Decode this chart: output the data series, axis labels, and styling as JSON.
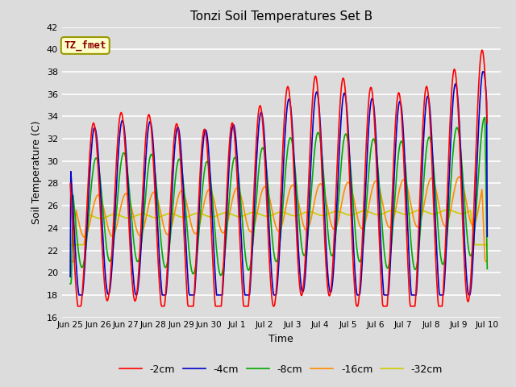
{
  "title": "Tonzi Soil Temperatures Set B",
  "xlabel": "Time",
  "ylabel": "Soil Temperature (C)",
  "ylim": [
    16,
    42
  ],
  "annotation_text": "TZ_fmet",
  "annotation_color": "#8B0000",
  "annotation_bg": "#FFFFCC",
  "annotation_border": "#999900",
  "bg_color": "#DCDCDC",
  "grid_color": "#FFFFFF",
  "line_colors": [
    "#FF0000",
    "#0000CC",
    "#00AA00",
    "#FF8C00",
    "#CCCC00"
  ],
  "line_labels": [
    "-2cm",
    "-4cm",
    "-8cm",
    "-16cm",
    "-32cm"
  ],
  "tick_labels": [
    "Jun 25",
    "Jun 26",
    "Jun 27",
    "Jun 28",
    "Jun 29",
    "Jun 30",
    "Jul 1",
    "Jul 2",
    "Jul 3",
    "Jul 4",
    "Jul 5",
    "Jul 6",
    "Jul 7",
    "Jul 8",
    "Jul 9",
    "Jul 10"
  ],
  "tick_positions": [
    0,
    1,
    2,
    3,
    4,
    5,
    6,
    7,
    8,
    9,
    10,
    11,
    12,
    13,
    14,
    15
  ],
  "yticks": [
    16,
    18,
    20,
    22,
    24,
    26,
    28,
    30,
    32,
    34,
    36,
    38,
    40,
    42
  ]
}
